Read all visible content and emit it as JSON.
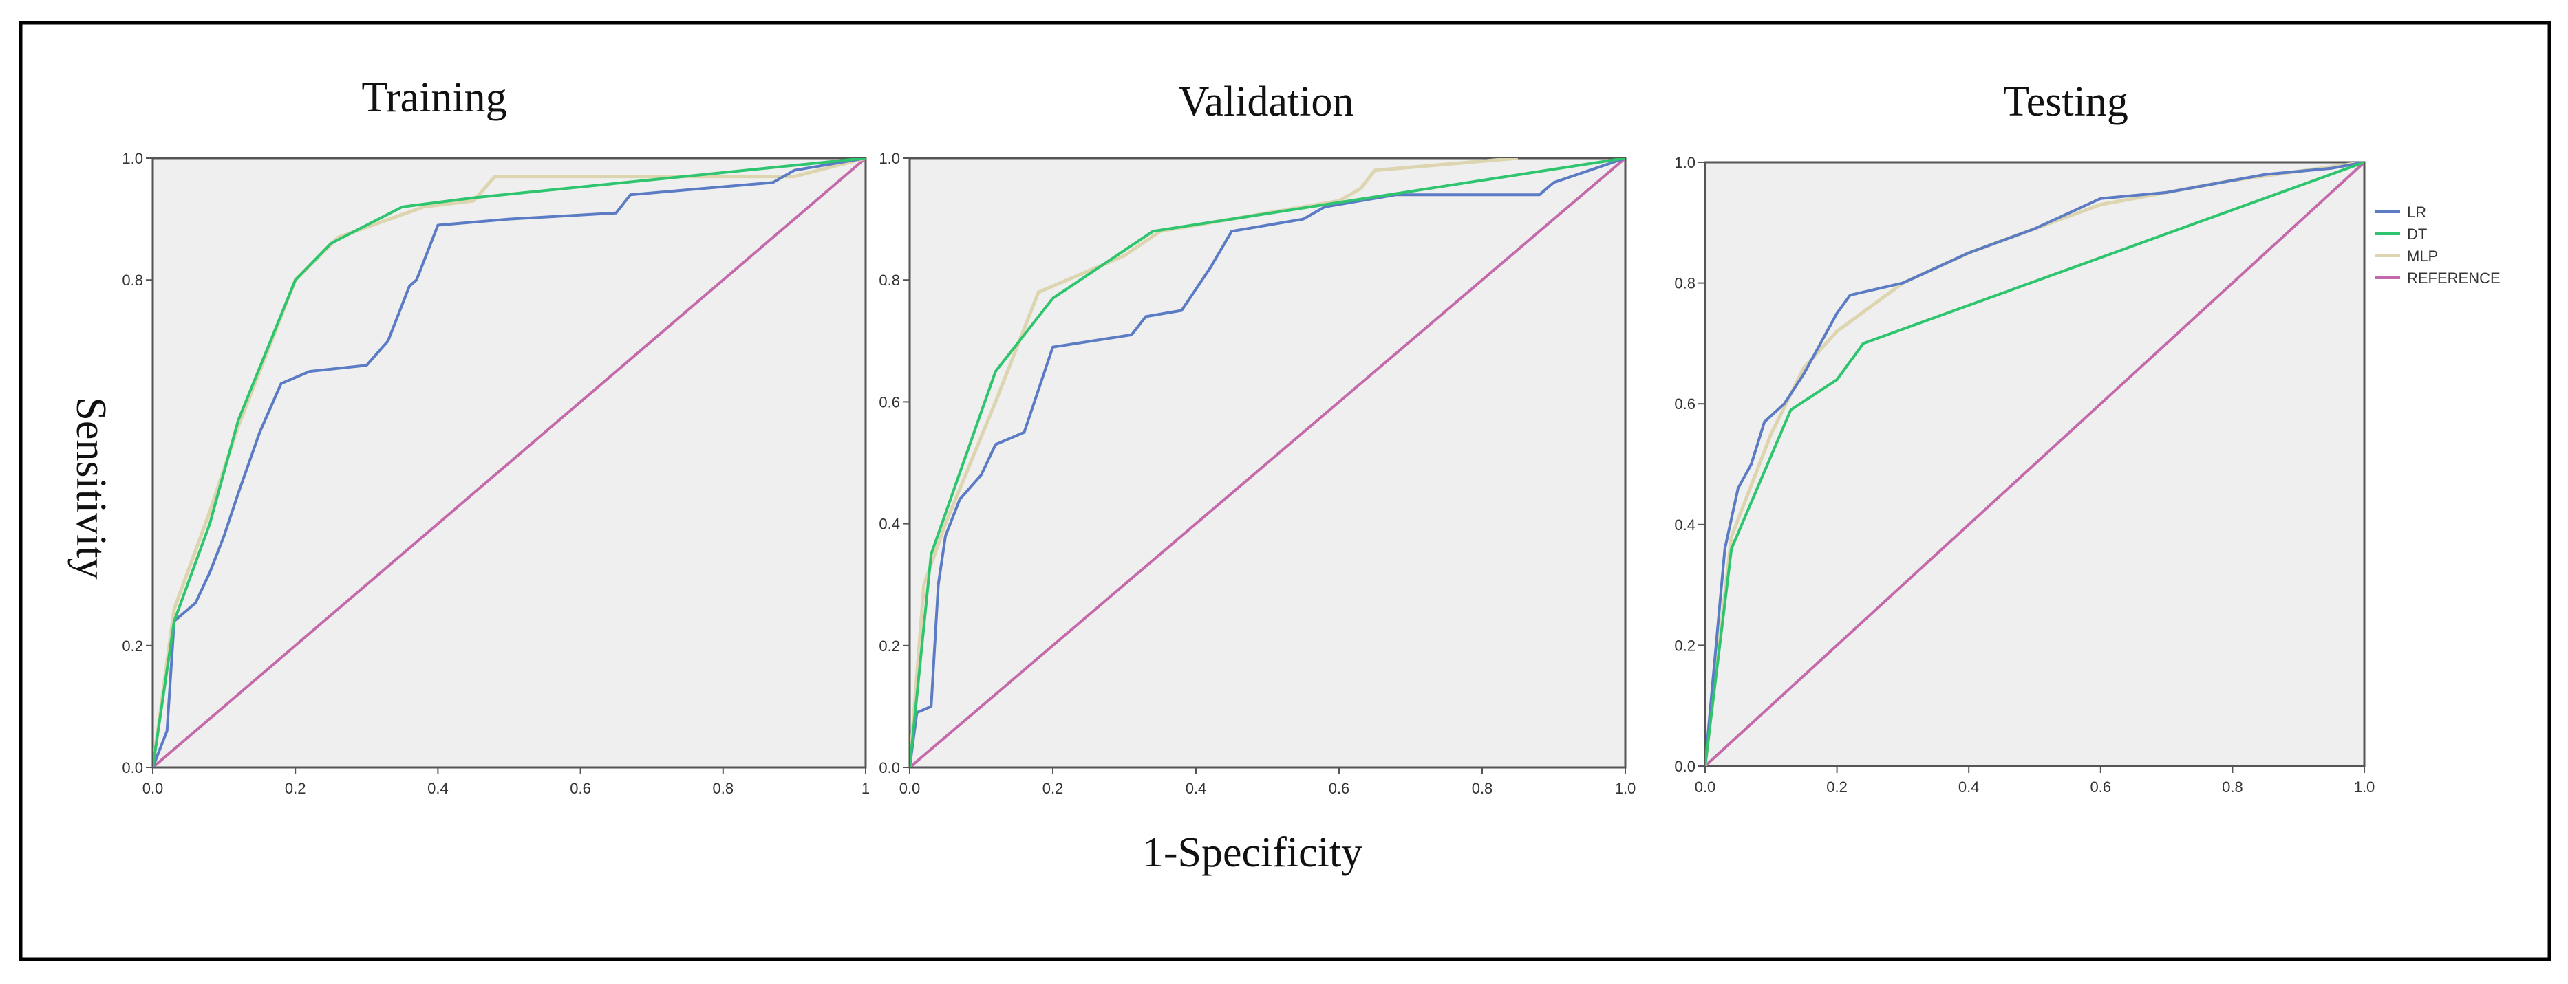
{
  "chart_data": [
    {
      "type": "line",
      "title": "Training",
      "xlim": [
        0,
        1
      ],
      "ylim": [
        0,
        1
      ],
      "x_ticks": [
        0,
        0.2,
        0.4,
        0.6,
        0.8,
        1
      ],
      "x_tick_labels": [
        "0.0",
        "0.2",
        "0.4",
        "0.6",
        "0.8",
        "1"
      ],
      "y_ticks": [
        0,
        0.2,
        0.8,
        1
      ],
      "y_tick_labels": [
        "0.0",
        "0.2",
        "0.8",
        "1.0"
      ],
      "series": [
        {
          "name": "LR",
          "points": [
            [
              0,
              0
            ],
            [
              0.02,
              0.06
            ],
            [
              0.03,
              0.24
            ],
            [
              0.06,
              0.27
            ],
            [
              0.08,
              0.32
            ],
            [
              0.1,
              0.38
            ],
            [
              0.12,
              0.45
            ],
            [
              0.15,
              0.55
            ],
            [
              0.18,
              0.63
            ],
            [
              0.22,
              0.65
            ],
            [
              0.3,
              0.66
            ],
            [
              0.33,
              0.7
            ],
            [
              0.36,
              0.79
            ],
            [
              0.37,
              0.8
            ],
            [
              0.4,
              0.89
            ],
            [
              0.5,
              0.9
            ],
            [
              0.65,
              0.91
            ],
            [
              0.67,
              0.94
            ],
            [
              0.87,
              0.96
            ],
            [
              0.9,
              0.98
            ],
            [
              1,
              1
            ]
          ]
        },
        {
          "name": "DT",
          "points": [
            [
              0,
              0
            ],
            [
              0.03,
              0.24
            ],
            [
              0.08,
              0.4
            ],
            [
              0.12,
              0.57
            ],
            [
              0.2,
              0.8
            ],
            [
              0.25,
              0.86
            ],
            [
              0.35,
              0.92
            ],
            [
              0.45,
              0.935
            ],
            [
              1,
              1
            ]
          ]
        },
        {
          "name": "MLP",
          "points": [
            [
              0,
              0
            ],
            [
              0.03,
              0.26
            ],
            [
              0.08,
              0.42
            ],
            [
              0.12,
              0.56
            ],
            [
              0.2,
              0.8
            ],
            [
              0.26,
              0.87
            ],
            [
              0.38,
              0.92
            ],
            [
              0.45,
              0.93
            ],
            [
              0.48,
              0.97
            ],
            [
              0.9,
              0.97
            ],
            [
              1,
              1
            ]
          ]
        },
        {
          "name": "REFERENCE",
          "points": [
            [
              0,
              0
            ],
            [
              1,
              1
            ]
          ]
        }
      ]
    },
    {
      "type": "line",
      "title": "Validation",
      "xlim": [
        0,
        1
      ],
      "ylim": [
        0,
        1
      ],
      "x_ticks": [
        0,
        0.2,
        0.4,
        0.6,
        0.8,
        1
      ],
      "x_tick_labels": [
        "0.0",
        "0.2",
        "0.4",
        "0.6",
        "0.8",
        "1.0"
      ],
      "y_ticks": [
        0,
        0.2,
        0.4,
        0.6,
        0.8,
        1
      ],
      "y_tick_labels": [
        "0.0",
        "0.2",
        "0.4",
        "0.6",
        "0.8",
        "1.0"
      ],
      "series": [
        {
          "name": "LR",
          "points": [
            [
              0,
              0
            ],
            [
              0.01,
              0.09
            ],
            [
              0.03,
              0.1
            ],
            [
              0.04,
              0.3
            ],
            [
              0.05,
              0.38
            ],
            [
              0.07,
              0.44
            ],
            [
              0.1,
              0.48
            ],
            [
              0.12,
              0.53
            ],
            [
              0.16,
              0.55
            ],
            [
              0.2,
              0.69
            ],
            [
              0.31,
              0.71
            ],
            [
              0.33,
              0.74
            ],
            [
              0.38,
              0.75
            ],
            [
              0.42,
              0.82
            ],
            [
              0.45,
              0.88
            ],
            [
              0.55,
              0.9
            ],
            [
              0.58,
              0.92
            ],
            [
              0.68,
              0.94
            ],
            [
              0.88,
              0.94
            ],
            [
              0.9,
              0.96
            ],
            [
              1,
              1
            ]
          ]
        },
        {
          "name": "DT",
          "points": [
            [
              0,
              0
            ],
            [
              0.03,
              0.35
            ],
            [
              0.06,
              0.45
            ],
            [
              0.12,
              0.65
            ],
            [
              0.2,
              0.77
            ],
            [
              0.34,
              0.88
            ],
            [
              1,
              1
            ]
          ]
        },
        {
          "name": "MLP",
          "points": [
            [
              0,
              0
            ],
            [
              0.02,
              0.3
            ],
            [
              0.05,
              0.4
            ],
            [
              0.12,
              0.6
            ],
            [
              0.18,
              0.78
            ],
            [
              0.3,
              0.84
            ],
            [
              0.35,
              0.88
            ],
            [
              0.6,
              0.93
            ],
            [
              0.63,
              0.95
            ],
            [
              0.65,
              0.98
            ],
            [
              0.85,
              1
            ]
          ]
        },
        {
          "name": "REFERENCE",
          "points": [
            [
              0,
              0
            ],
            [
              1,
              1
            ]
          ]
        }
      ]
    },
    {
      "type": "line",
      "title": "Testing",
      "xlim": [
        0,
        1
      ],
      "ylim": [
        0,
        1
      ],
      "x_ticks": [
        0,
        0.2,
        0.4,
        0.6,
        0.8,
        1
      ],
      "x_tick_labels": [
        "0.0",
        "0.2",
        "0.4",
        "0.6",
        "0.8",
        "1.0"
      ],
      "y_ticks": [
        0,
        0.2,
        0.4,
        0.6,
        0.8,
        1
      ],
      "y_tick_labels": [
        "0.0",
        "0.2",
        "0.4",
        "0.6",
        "0.8",
        "1.0"
      ],
      "series": [
        {
          "name": "LR",
          "points": [
            [
              0,
              0
            ],
            [
              0.03,
              0.36
            ],
            [
              0.05,
              0.46
            ],
            [
              0.07,
              0.5
            ],
            [
              0.09,
              0.57
            ],
            [
              0.12,
              0.6
            ],
            [
              0.15,
              0.65
            ],
            [
              0.2,
              0.75
            ],
            [
              0.22,
              0.78
            ],
            [
              0.3,
              0.8
            ],
            [
              0.4,
              0.85
            ],
            [
              0.5,
              0.89
            ],
            [
              0.6,
              0.94
            ],
            [
              0.7,
              0.95
            ],
            [
              0.85,
              0.98
            ],
            [
              0.95,
              0.99
            ],
            [
              1,
              1
            ]
          ]
        },
        {
          "name": "DT",
          "points": [
            [
              0,
              0
            ],
            [
              0.04,
              0.36
            ],
            [
              0.13,
              0.59
            ],
            [
              0.2,
              0.64
            ],
            [
              0.24,
              0.7
            ],
            [
              1,
              1
            ]
          ]
        },
        {
          "name": "MLP",
          "points": [
            [
              0,
              0
            ],
            [
              0.04,
              0.38
            ],
            [
              0.1,
              0.55
            ],
            [
              0.15,
              0.66
            ],
            [
              0.2,
              0.72
            ],
            [
              0.3,
              0.8
            ],
            [
              0.4,
              0.85
            ],
            [
              0.6,
              0.93
            ],
            [
              0.8,
              0.97
            ],
            [
              1,
              1
            ]
          ]
        },
        {
          "name": "REFERENCE",
          "points": [
            [
              0,
              0
            ],
            [
              1,
              1
            ]
          ]
        }
      ]
    }
  ],
  "shared": {
    "xlabel": "1-Specificity",
    "ylabel": "Sensitivity"
  },
  "legend": {
    "items": [
      {
        "name": "LR",
        "color": "#5b7cc4"
      },
      {
        "name": "DT",
        "color": "#2fc46e"
      },
      {
        "name": "MLP",
        "color": "#dcd5b0"
      },
      {
        "name": "REFERENCE",
        "color": "#c46aaa"
      }
    ]
  },
  "colors": {
    "plot_bg": "#efefef",
    "axis": "#555555",
    "LR": "#5b7cc4",
    "DT": "#2fc46e",
    "MLP": "#dcd5b0",
    "REFERENCE": "#c46aaa"
  }
}
